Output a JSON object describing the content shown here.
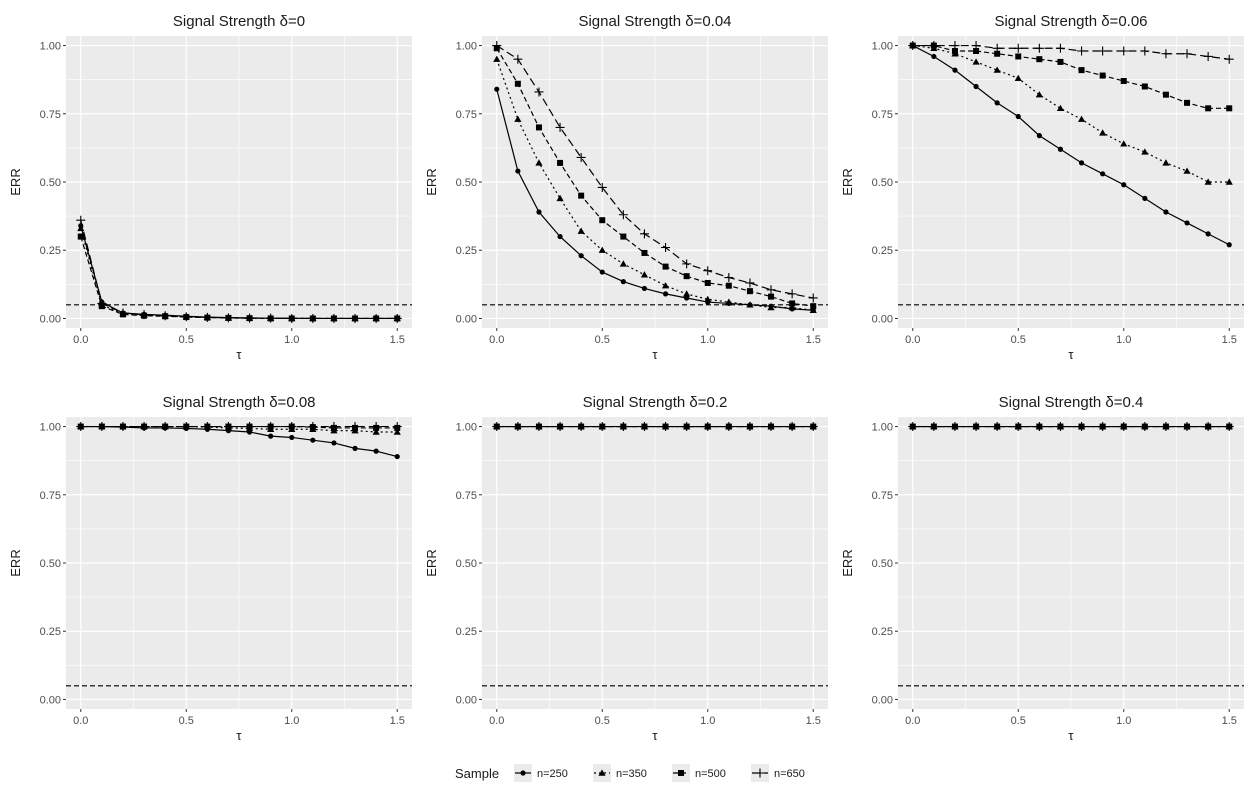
{
  "chart_data": {
    "type": "line",
    "x": [
      0.0,
      0.1,
      0.2,
      0.3,
      0.4,
      0.5,
      0.6,
      0.7,
      0.8,
      0.9,
      1.0,
      1.1,
      1.2,
      1.3,
      1.4,
      1.5
    ],
    "xlabel": "τ",
    "ylabel": "ERR",
    "xlim": [
      -0.07,
      1.57
    ],
    "ylim": [
      -0.035,
      1.035
    ],
    "x_ticks": [
      "0.0",
      "0.5",
      "1.0",
      "1.5"
    ],
    "y_ticks": [
      "0.00",
      "0.25",
      "0.50",
      "0.75",
      "1.00"
    ],
    "grid": true,
    "reference_line": {
      "y": 0.05,
      "style": "dashed"
    },
    "legend": {
      "title": "Sample",
      "position": "bottom",
      "entries": [
        "n=250",
        "n=350",
        "n=500",
        "n=650"
      ]
    },
    "series_styles": [
      {
        "name": "n=250",
        "marker": "circle",
        "dash": "none"
      },
      {
        "name": "n=350",
        "marker": "triangle",
        "dash": "dotted"
      },
      {
        "name": "n=500",
        "marker": "square",
        "dash": "dashed"
      },
      {
        "name": "n=650",
        "marker": "plus",
        "dash": "longdash"
      }
    ],
    "panels": [
      {
        "title": "Signal Strength δ=0",
        "series": [
          {
            "name": "n=250",
            "values": [
              0.34,
              0.06,
              0.02,
              0.015,
              0.012,
              0.008,
              0.005,
              0.003,
              0.002,
              0.001,
              0.001,
              0.0,
              0.0,
              0.0,
              0.0,
              0.0
            ]
          },
          {
            "name": "n=350",
            "values": [
              0.33,
              0.05,
              0.018,
              0.012,
              0.009,
              0.006,
              0.004,
              0.002,
              0.001,
              0.001,
              0.0,
              0.0,
              0.0,
              0.0,
              0.0,
              0.0
            ]
          },
          {
            "name": "n=500",
            "values": [
              0.3,
              0.045,
              0.015,
              0.01,
              0.008,
              0.005,
              0.003,
              0.002,
              0.001,
              0.0,
              0.0,
              0.0,
              0.0,
              0.0,
              0.0,
              0.0
            ]
          },
          {
            "name": "n=650",
            "values": [
              0.36,
              0.055,
              0.02,
              0.014,
              0.01,
              0.006,
              0.004,
              0.002,
              0.001,
              0.001,
              0.0,
              0.0,
              0.0,
              0.0,
              0.0,
              0.0
            ]
          }
        ]
      },
      {
        "title": "Signal Strength δ=0.04",
        "series": [
          {
            "name": "n=250",
            "values": [
              0.84,
              0.54,
              0.39,
              0.3,
              0.23,
              0.17,
              0.135,
              0.11,
              0.09,
              0.075,
              0.06,
              0.055,
              0.05,
              0.045,
              0.035,
              0.03
            ]
          },
          {
            "name": "n=350",
            "values": [
              0.95,
              0.73,
              0.57,
              0.44,
              0.32,
              0.25,
              0.2,
              0.16,
              0.12,
              0.09,
              0.07,
              0.06,
              0.05,
              0.04,
              0.04,
              0.03
            ]
          },
          {
            "name": "n=500",
            "values": [
              0.99,
              0.86,
              0.7,
              0.57,
              0.45,
              0.36,
              0.3,
              0.24,
              0.19,
              0.155,
              0.13,
              0.12,
              0.1,
              0.08,
              0.055,
              0.045
            ]
          },
          {
            "name": "n=650",
            "values": [
              1.0,
              0.95,
              0.83,
              0.7,
              0.59,
              0.48,
              0.38,
              0.31,
              0.26,
              0.2,
              0.175,
              0.15,
              0.13,
              0.105,
              0.09,
              0.075
            ]
          }
        ]
      },
      {
        "title": "Signal Strength δ=0.06",
        "series": [
          {
            "name": "n=250",
            "values": [
              1.0,
              0.96,
              0.91,
              0.85,
              0.79,
              0.74,
              0.67,
              0.62,
              0.57,
              0.53,
              0.49,
              0.44,
              0.39,
              0.35,
              0.31,
              0.27
            ]
          },
          {
            "name": "n=350",
            "values": [
              1.0,
              0.99,
              0.97,
              0.94,
              0.91,
              0.88,
              0.82,
              0.77,
              0.73,
              0.68,
              0.64,
              0.61,
              0.57,
              0.54,
              0.5,
              0.5
            ]
          },
          {
            "name": "n=500",
            "values": [
              1.0,
              1.0,
              0.98,
              0.98,
              0.97,
              0.96,
              0.95,
              0.94,
              0.91,
              0.89,
              0.87,
              0.85,
              0.82,
              0.79,
              0.77,
              0.77
            ]
          },
          {
            "name": "n=650",
            "values": [
              1.0,
              1.0,
              1.0,
              1.0,
              0.99,
              0.99,
              0.99,
              0.99,
              0.98,
              0.98,
              0.98,
              0.98,
              0.97,
              0.97,
              0.96,
              0.95
            ]
          }
        ]
      },
      {
        "title": "Signal Strength δ=0.08",
        "series": [
          {
            "name": "n=250",
            "values": [
              1.0,
              1.0,
              0.998,
              0.995,
              0.995,
              0.993,
              0.99,
              0.985,
              0.98,
              0.965,
              0.96,
              0.95,
              0.94,
              0.92,
              0.91,
              0.89
            ]
          },
          {
            "name": "n=350",
            "values": [
              1.0,
              1.0,
              1.0,
              1.0,
              1.0,
              1.0,
              0.998,
              0.995,
              0.993,
              0.99,
              0.99,
              0.99,
              0.985,
              0.985,
              0.98,
              0.98
            ]
          },
          {
            "name": "n=500",
            "values": [
              1.0,
              1.0,
              1.0,
              1.0,
              1.0,
              1.0,
              1.0,
              1.0,
              1.0,
              1.0,
              1.0,
              0.998,
              0.995,
              0.995,
              0.995,
              0.995
            ]
          },
          {
            "name": "n=650",
            "values": [
              1.0,
              1.0,
              1.0,
              1.0,
              1.0,
              1.0,
              1.0,
              1.0,
              1.0,
              1.0,
              1.0,
              1.0,
              1.0,
              1.0,
              1.0,
              1.0
            ]
          }
        ]
      },
      {
        "title": "Signal Strength δ=0.2",
        "series": [
          {
            "name": "n=250",
            "values": [
              1.0,
              1.0,
              1.0,
              1.0,
              1.0,
              1.0,
              1.0,
              1.0,
              1.0,
              1.0,
              1.0,
              1.0,
              1.0,
              1.0,
              1.0,
              1.0
            ]
          },
          {
            "name": "n=350",
            "values": [
              1.0,
              1.0,
              1.0,
              1.0,
              1.0,
              1.0,
              1.0,
              1.0,
              1.0,
              1.0,
              1.0,
              1.0,
              1.0,
              1.0,
              1.0,
              1.0
            ]
          },
          {
            "name": "n=500",
            "values": [
              1.0,
              1.0,
              1.0,
              1.0,
              1.0,
              1.0,
              1.0,
              1.0,
              1.0,
              1.0,
              1.0,
              1.0,
              1.0,
              1.0,
              1.0,
              1.0
            ]
          },
          {
            "name": "n=650",
            "values": [
              1.0,
              1.0,
              1.0,
              1.0,
              1.0,
              1.0,
              1.0,
              1.0,
              1.0,
              1.0,
              1.0,
              1.0,
              1.0,
              1.0,
              1.0,
              1.0
            ]
          }
        ]
      },
      {
        "title": "Signal Strength δ=0.4",
        "series": [
          {
            "name": "n=250",
            "values": [
              1.0,
              1.0,
              1.0,
              1.0,
              1.0,
              1.0,
              1.0,
              1.0,
              1.0,
              1.0,
              1.0,
              1.0,
              1.0,
              1.0,
              1.0,
              1.0
            ]
          },
          {
            "name": "n=350",
            "values": [
              1.0,
              1.0,
              1.0,
              1.0,
              1.0,
              1.0,
              1.0,
              1.0,
              1.0,
              1.0,
              1.0,
              1.0,
              1.0,
              1.0,
              1.0,
              1.0
            ]
          },
          {
            "name": "n=500",
            "values": [
              1.0,
              1.0,
              1.0,
              1.0,
              1.0,
              1.0,
              1.0,
              1.0,
              1.0,
              1.0,
              1.0,
              1.0,
              1.0,
              1.0,
              1.0,
              1.0
            ]
          },
          {
            "name": "n=650",
            "values": [
              1.0,
              1.0,
              1.0,
              1.0,
              1.0,
              1.0,
              1.0,
              1.0,
              1.0,
              1.0,
              1.0,
              1.0,
              1.0,
              1.0,
              1.0,
              1.0
            ]
          }
        ]
      }
    ]
  },
  "colors": {
    "panel_bg": "#ebebeb",
    "grid_major": "#ffffff",
    "line": "#000000",
    "tick_text": "#4d4d4d"
  }
}
